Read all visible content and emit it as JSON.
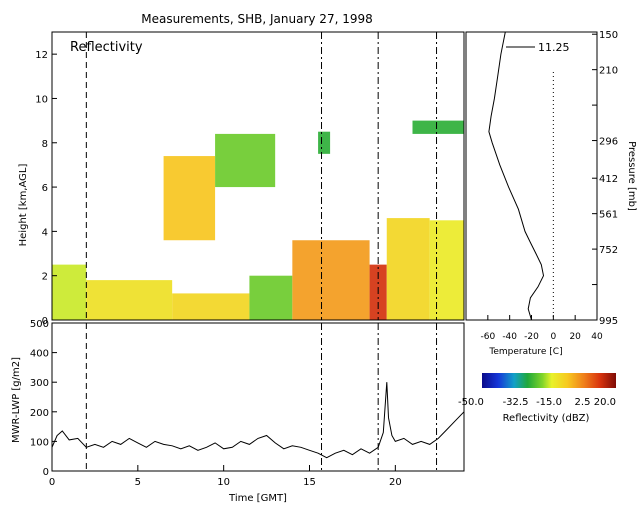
{
  "title": "Measurements, SHB, January 27, 1998",
  "colors": {
    "background": "#ffffff",
    "axes": "#000000",
    "echo_green": "#33b82e",
    "echo_yellow": "#f2d22a",
    "echo_orange": "#f08a1c",
    "echo_red": "#b8240c"
  },
  "chart_data": [
    {
      "id": "reflectivity",
      "type": "heatmap",
      "title": "Reflectivity",
      "xlabel": "",
      "ylabel": "Height [km,AGL]",
      "xlim": [
        0,
        24
      ],
      "ylim": [
        0,
        13
      ],
      "y_ticks": [
        0,
        2,
        4,
        6,
        8,
        10,
        12
      ],
      "y_tick_labels": [
        "0",
        "2",
        "4",
        "6",
        "8",
        "10",
        "12"
      ],
      "vertical_markers_gmt": [
        2.0,
        15.7,
        19.0,
        22.4
      ],
      "colorscale": {
        "label": "Reflectivity (dBZ)",
        "min": -50.0,
        "max": 20.0,
        "tick_values": [
          -50.0,
          -32.5,
          -15.0,
          2.5,
          20.0
        ],
        "tick_labels": [
          "-50.0",
          "-32.5",
          "-15.0",
          "2.5",
          "20.0"
        ]
      },
      "echo_regions": [
        {
          "x": [
            0.0,
            2.0
          ],
          "y": [
            0.0,
            2.5
          ],
          "dbz": -15
        },
        {
          "x": [
            2.0,
            7.0
          ],
          "y": [
            0.0,
            1.8
          ],
          "dbz": -10
        },
        {
          "x": [
            7.0,
            11.5
          ],
          "y": [
            0.0,
            1.2
          ],
          "dbz": -8
        },
        {
          "x": [
            11.5,
            14.0
          ],
          "y": [
            0.0,
            2.0
          ],
          "dbz": -20
        },
        {
          "x": [
            14.0,
            18.5
          ],
          "y": [
            0.0,
            3.6
          ],
          "dbz": 0
        },
        {
          "x": [
            18.5,
            19.5
          ],
          "y": [
            0.0,
            2.5
          ],
          "dbz": 12
        },
        {
          "x": [
            19.5,
            22.0
          ],
          "y": [
            0.0,
            4.6
          ],
          "dbz": -8
        },
        {
          "x": [
            22.0,
            24.0
          ],
          "y": [
            0.0,
            4.5
          ],
          "dbz": -12
        },
        {
          "x": [
            6.5,
            9.5
          ],
          "y": [
            3.6,
            7.4
          ],
          "dbz": -5
        },
        {
          "x": [
            9.5,
            13.0
          ],
          "y": [
            6.0,
            8.4
          ],
          "dbz": -20
        },
        {
          "x": [
            15.5,
            16.2
          ],
          "y": [
            7.5,
            8.5
          ],
          "dbz": -25
        },
        {
          "x": [
            21.0,
            24.0
          ],
          "y": [
            8.4,
            9.0
          ],
          "dbz": -25
        }
      ]
    },
    {
      "id": "mwr_lwp",
      "type": "line",
      "xlabel": "Time [GMT]",
      "ylabel": "MWR-LWP [g/m2]",
      "xlim": [
        0,
        24
      ],
      "ylim": [
        0,
        500
      ],
      "x_ticks": [
        0,
        5,
        10,
        15,
        20
      ],
      "x_tick_labels": [
        "0",
        "5",
        "10",
        "15",
        "20"
      ],
      "y_ticks": [
        0,
        100,
        200,
        300,
        400,
        500
      ],
      "y_tick_labels": [
        "0",
        "100",
        "200",
        "300",
        "400",
        "500"
      ],
      "vertical_markers_gmt": [
        2.0,
        15.7,
        19.0,
        22.4
      ],
      "series": [
        {
          "x": [
            0,
            0.3,
            0.6,
            1.0,
            1.5,
            2.0,
            2.5,
            3.0,
            3.5,
            4.0,
            4.5,
            5.0,
            5.5,
            6.0,
            6.5,
            7.0,
            7.5,
            8.0,
            8.5,
            9.0,
            9.5,
            10.0,
            10.5,
            11.0,
            11.5,
            12.0,
            12.5,
            13.0,
            13.5,
            14.0,
            14.5,
            15.0,
            15.5,
            16.0,
            16.5,
            17.0,
            17.5,
            18.0,
            18.5,
            19.0,
            19.3,
            19.5,
            19.6,
            19.8,
            20.0,
            20.5,
            21.0,
            21.5,
            22.0,
            22.5,
            23.0,
            23.5,
            24.0
          ],
          "y": [
            80,
            120,
            135,
            105,
            110,
            80,
            90,
            80,
            100,
            90,
            110,
            95,
            80,
            100,
            90,
            85,
            75,
            85,
            70,
            80,
            95,
            75,
            80,
            100,
            90,
            110,
            120,
            95,
            75,
            85,
            80,
            70,
            60,
            45,
            60,
            70,
            55,
            75,
            60,
            80,
            130,
            300,
            180,
            120,
            100,
            110,
            90,
            100,
            90,
            110,
            140,
            170,
            200
          ]
        }
      ]
    },
    {
      "id": "temperature_profile",
      "type": "line",
      "xlabel": "Temperature [C]",
      "ylabel": "Pressure [mb]",
      "xlim": [
        -80,
        40
      ],
      "ylim": [
        0,
        13
      ],
      "x_ticks": [
        -60,
        -40,
        -20,
        0,
        20,
        40
      ],
      "x_tick_labels": [
        "-60",
        "-40",
        "-20",
        "0",
        "20",
        "40"
      ],
      "right_axis_ticks": [
        0,
        1.6,
        3.2,
        4.8,
        6.4,
        8.1,
        9.7,
        11.3,
        12.9
      ],
      "right_axis_labels": [
        "995",
        "",
        "752",
        "561",
        "412",
        "296",
        "",
        "210",
        "150"
      ],
      "legend": "11.25",
      "zero_line_c": 0,
      "series": [
        {
          "x": [
            -20,
            -23,
            -21,
            -14,
            -9,
            -11,
            -16,
            -21,
            -26,
            -32,
            -41,
            -49,
            -56,
            -59,
            -57,
            -54,
            -51,
            -48,
            -44
          ],
          "y": [
            0,
            0.5,
            1.0,
            1.5,
            2.0,
            2.5,
            3.0,
            3.5,
            4.0,
            5.0,
            6.0,
            7.0,
            8.0,
            8.5,
            9.2,
            10.0,
            11.0,
            12.0,
            13.0
          ]
        }
      ]
    }
  ]
}
